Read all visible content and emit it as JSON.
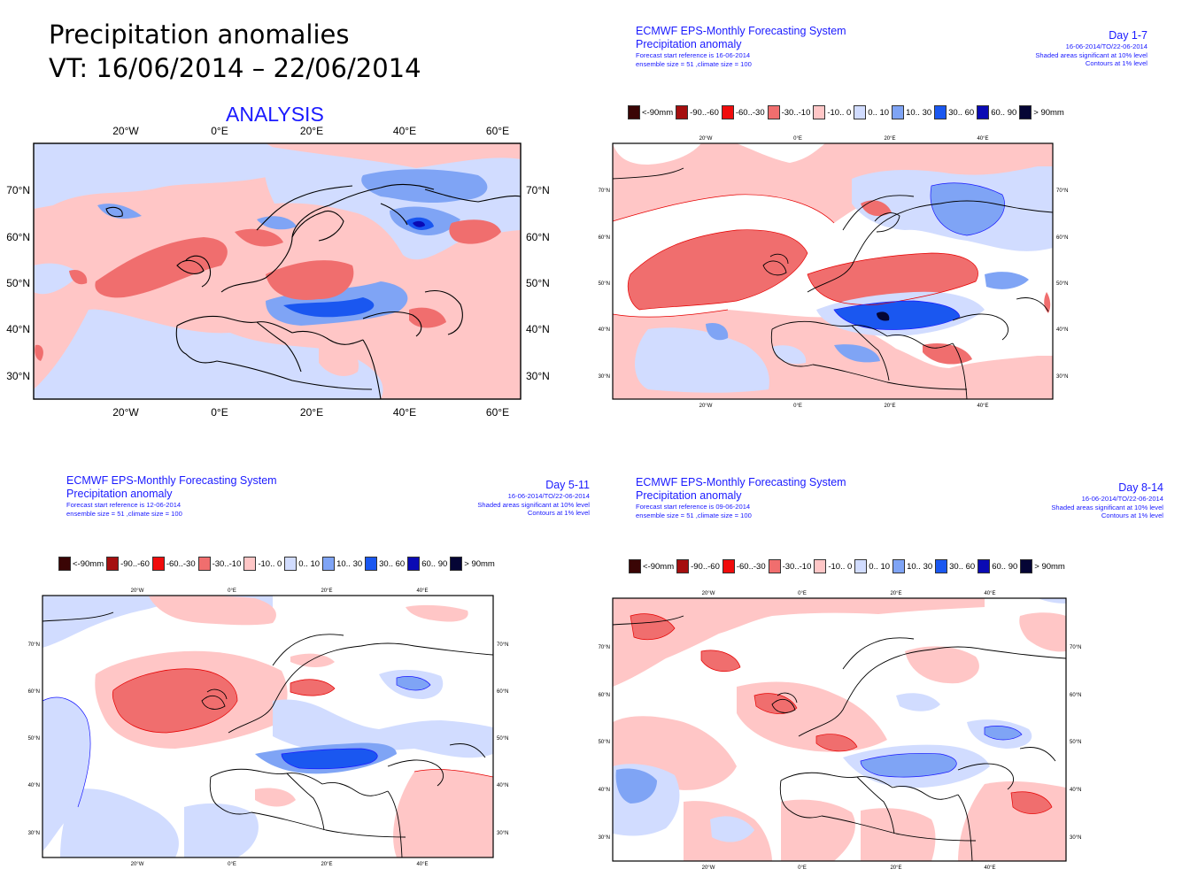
{
  "slide": {
    "title_line1": "Precipitation anomalies",
    "title_line2": "VT: 16/06/2014 – 22/06/2014",
    "analysis_label": "ANALYSIS"
  },
  "legend": {
    "items": [
      {
        "label": "<-90mm",
        "color": "#3a0505"
      },
      {
        "label": "-90..-60",
        "color": "#a50f0f"
      },
      {
        "label": "-60..-30",
        "color": "#f00c0c"
      },
      {
        "label": "-30..-10",
        "color": "#f06e6e"
      },
      {
        "label": "-10..  0",
        "color": "#ffc6c6"
      },
      {
        "label": "0.. 10",
        "color": "#d1dcff"
      },
      {
        "label": "10.. 30",
        "color": "#7fa4f5"
      },
      {
        "label": "30.. 60",
        "color": "#1a57f0"
      },
      {
        "label": "60.. 90",
        "color": "#0a0ab4"
      },
      {
        "label": ">  90mm",
        "color": "#050535"
      }
    ]
  },
  "analysis_map": {
    "lon_labels": [
      "20°W",
      "0°E",
      "20°E",
      "40°E",
      "60°E"
    ],
    "lat_labels": [
      "70°N",
      "60°N",
      "50°N",
      "40°N",
      "30°N"
    ]
  },
  "forecast_map": {
    "lon_labels": [
      "20°W",
      "0°E",
      "20°E",
      "40°E"
    ],
    "lat_labels": [
      "70°N",
      "60°N",
      "50°N",
      "40°N",
      "30°N"
    ]
  },
  "panels": {
    "day1_7": {
      "system": "ECMWF EPS-Monthly Forecasting System",
      "product": "Precipitation anomaly",
      "start_ref": "Forecast start reference is 16-06-2014",
      "ensemble": "ensemble size = 51  ,climate size = 100",
      "period": "Day 1-7",
      "valid": "16-06-2014/TO/22-06-2014",
      "sig10": "Shaded areas significant at 10% level",
      "sig1": "Contours at 1% level"
    },
    "day5_11": {
      "system": "ECMWF EPS-Monthly Forecasting System",
      "product": "Precipitation anomaly",
      "start_ref": "Forecast start reference is 12-06-2014",
      "ensemble": "ensemble size = 51  ,climate size = 100",
      "period": "Day 5-11",
      "valid": "16-06-2014/TO/22-06-2014",
      "sig10": "Shaded areas significant at 10% level",
      "sig1": "Contours at 1% level"
    },
    "day8_14": {
      "system": "ECMWF EPS-Monthly Forecasting System",
      "product": "Precipitation anomaly",
      "start_ref": "Forecast start reference is 09-06-2014",
      "ensemble": "ensemble size = 51  ,climate size = 100",
      "period": "Day 8-14",
      "valid": "16-06-2014/TO/22-06-2014",
      "sig10": "Shaded areas significant at 10% level",
      "sig1": "Contours at 1% level"
    }
  }
}
